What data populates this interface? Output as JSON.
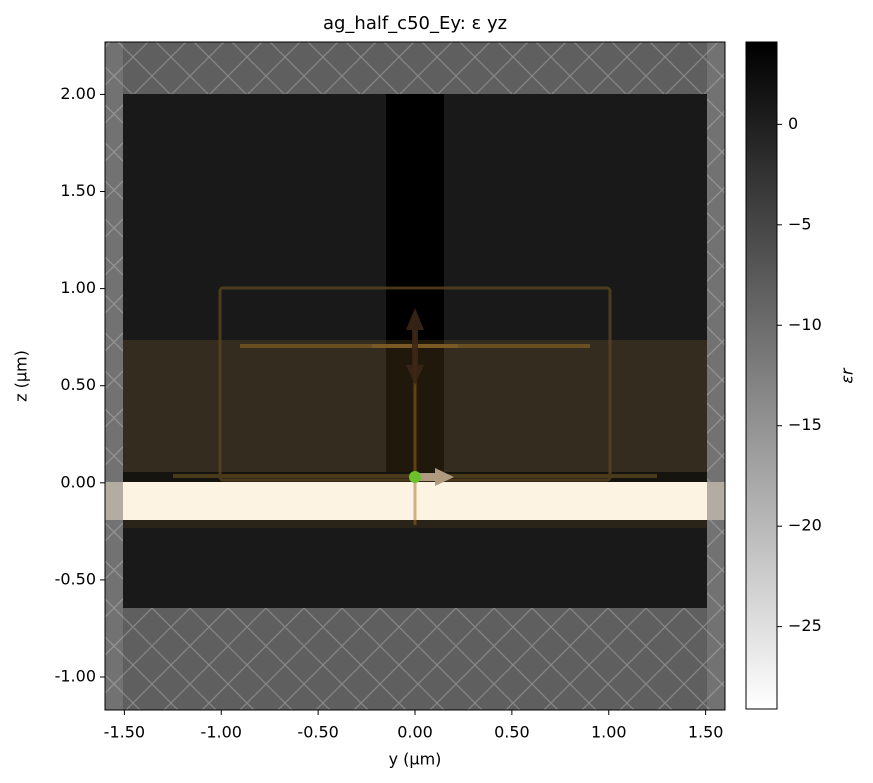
{
  "chart_data": {
    "type": "image",
    "title": "ag_half_c50_Ey: ε yz",
    "xlabel": "y (µm)",
    "ylabel": "z (µm)",
    "xlim": [
      -1.6,
      1.6
    ],
    "ylim": [
      -1.17,
      2.27
    ],
    "xticks": [
      {
        "value": -1.5,
        "label": "-1.50"
      },
      {
        "value": -1.0,
        "label": "-1.00"
      },
      {
        "value": -0.5,
        "label": "-0.50"
      },
      {
        "value": 0,
        "label": "0.00"
      },
      {
        "value": 0.5,
        "label": "0.50"
      },
      {
        "value": 1.0,
        "label": "1.00"
      },
      {
        "value": 1.5,
        "label": "1.50"
      }
    ],
    "yticks": [
      {
        "value": -1.0,
        "label": "-1.00"
      },
      {
        "value": -0.5,
        "label": "-0.50"
      },
      {
        "value": 0,
        "label": "0.00"
      },
      {
        "value": 0.5,
        "label": "0.50"
      },
      {
        "value": 1.0,
        "label": "1.00"
      },
      {
        "value": 1.5,
        "label": "1.50"
      },
      {
        "value": 2.0,
        "label": "2.00"
      }
    ],
    "colorbar": {
      "label": "εr",
      "clim": [
        -29.1,
        4.1
      ],
      "colors": [
        "#ffffff",
        "#000000"
      ],
      "ticks": [
        {
          "value": -25,
          "label": "−25"
        },
        {
          "value": -20,
          "label": "−20"
        },
        {
          "value": -15,
          "label": "−15"
        },
        {
          "value": -10,
          "label": "−10"
        },
        {
          "value": -5,
          "label": "−5"
        },
        0
      ]
    }
  }
}
